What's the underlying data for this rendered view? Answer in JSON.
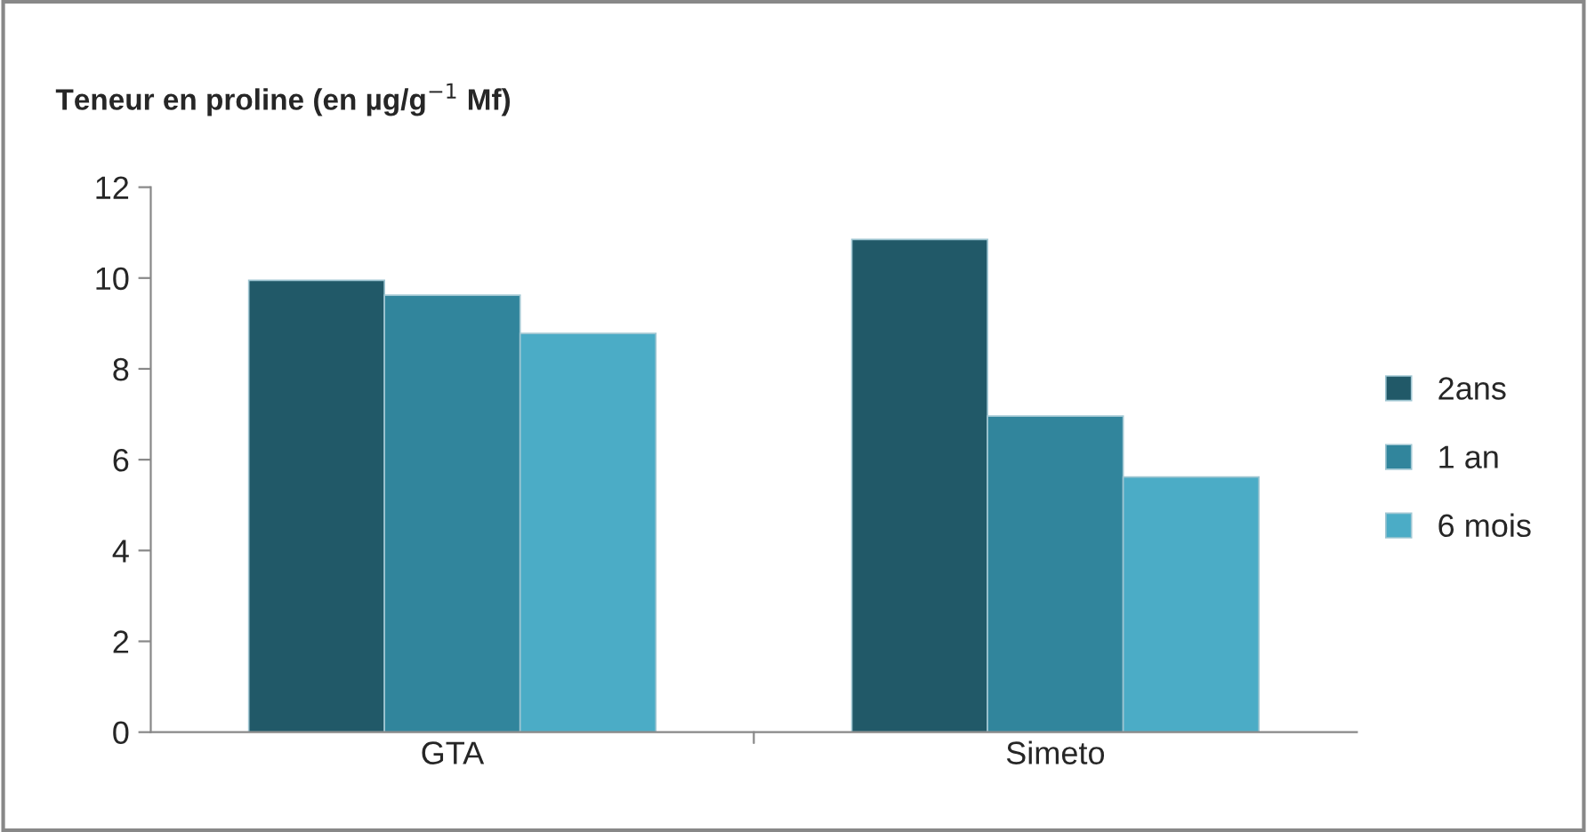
{
  "chart_data": {
    "type": "bar",
    "title": "Teneur en proline (en µg/g$^{−1}$ Mf)",
    "categories": [
      "GTA",
      "Simeto"
    ],
    "series": [
      {
        "name": "2ans",
        "color": "#215968",
        "values": [
          9.95,
          10.85
        ]
      },
      {
        "name": "1 an",
        "color": "#31859c",
        "values": [
          9.62,
          6.96
        ]
      },
      {
        "name": "6 mois",
        "color": "#4bacc6",
        "values": [
          8.78,
          5.62
        ]
      }
    ],
    "ylim": [
      0,
      12
    ],
    "yticks": [
      0,
      2,
      4,
      6,
      8,
      10,
      12
    ],
    "grid": false,
    "legend": "right"
  }
}
